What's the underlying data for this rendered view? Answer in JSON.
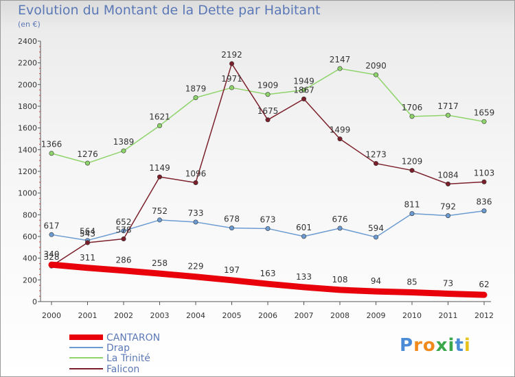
{
  "header": {
    "title": "Evolution du Montant de la Dette par Habitant",
    "subtitle": "(en €)"
  },
  "logo": {
    "text": "Proxiti",
    "letters": [
      "P",
      "r",
      "o",
      "x",
      "i",
      "t",
      "i"
    ],
    "colors": [
      "#4a8bd6",
      "#f08a1c",
      "#f08a1c",
      "#3aa84a",
      "#3aa84a",
      "#4a8bd6",
      "#e8c21a"
    ]
  },
  "chart_data": {
    "type": "line",
    "categories": [
      "2000",
      "2001",
      "2002",
      "2003",
      "2004",
      "2005",
      "2006",
      "2007",
      "2008",
      "2009",
      "2010",
      "2011",
      "2012"
    ],
    "ylim": [
      0,
      2400
    ],
    "yticks": [
      "0",
      "200",
      "400",
      "600",
      "800",
      "1000",
      "1200",
      "1400",
      "1600",
      "1800",
      "2000",
      "2200",
      "2400"
    ],
    "grid": false,
    "legend_position": "bottom-left",
    "series": [
      {
        "name": "CANTARON",
        "color": "#e8000b",
        "values": [
          340,
          311,
          286,
          258,
          229,
          197,
          163,
          133,
          108,
          94,
          85,
          73,
          62
        ],
        "labels": [
          "340",
          "311",
          "286",
          "258",
          "229",
          "197",
          "163",
          "133",
          "108",
          "94",
          "85",
          "73",
          "62"
        ]
      },
      {
        "name": "Drap",
        "color": "#6b9bd1",
        "values": [
          617,
          564,
          652,
          752,
          733,
          678,
          673,
          601,
          676,
          594,
          811,
          792,
          836
        ],
        "labels": [
          "617",
          "564",
          "652",
          "752",
          "733",
          "678",
          "673",
          "601",
          "676",
          "594",
          "811",
          "792",
          "836"
        ]
      },
      {
        "name": "La Trinité",
        "color": "#8ed46a",
        "values": [
          1366,
          1276,
          1389,
          1621,
          1879,
          1971,
          1909,
          1949,
          2147,
          2090,
          1706,
          1717,
          1659
        ],
        "labels": [
          "1366",
          "1276",
          "1389",
          "1621",
          "1879",
          "1971",
          "1909",
          "1949",
          "2147",
          "2090",
          "1706",
          "1717",
          "1659"
        ]
      },
      {
        "name": "Falicon",
        "color": "#7b1f2a",
        "values": [
          328,
          543,
          578,
          1149,
          1096,
          2192,
          1675,
          1867,
          1499,
          1273,
          1209,
          1084,
          1103
        ],
        "labels": [
          "328",
          "543",
          "578",
          "1149",
          "1096",
          "2192",
          "1675",
          "1867",
          "1499",
          "1273",
          "1209",
          "1084",
          "1103"
        ]
      }
    ]
  }
}
